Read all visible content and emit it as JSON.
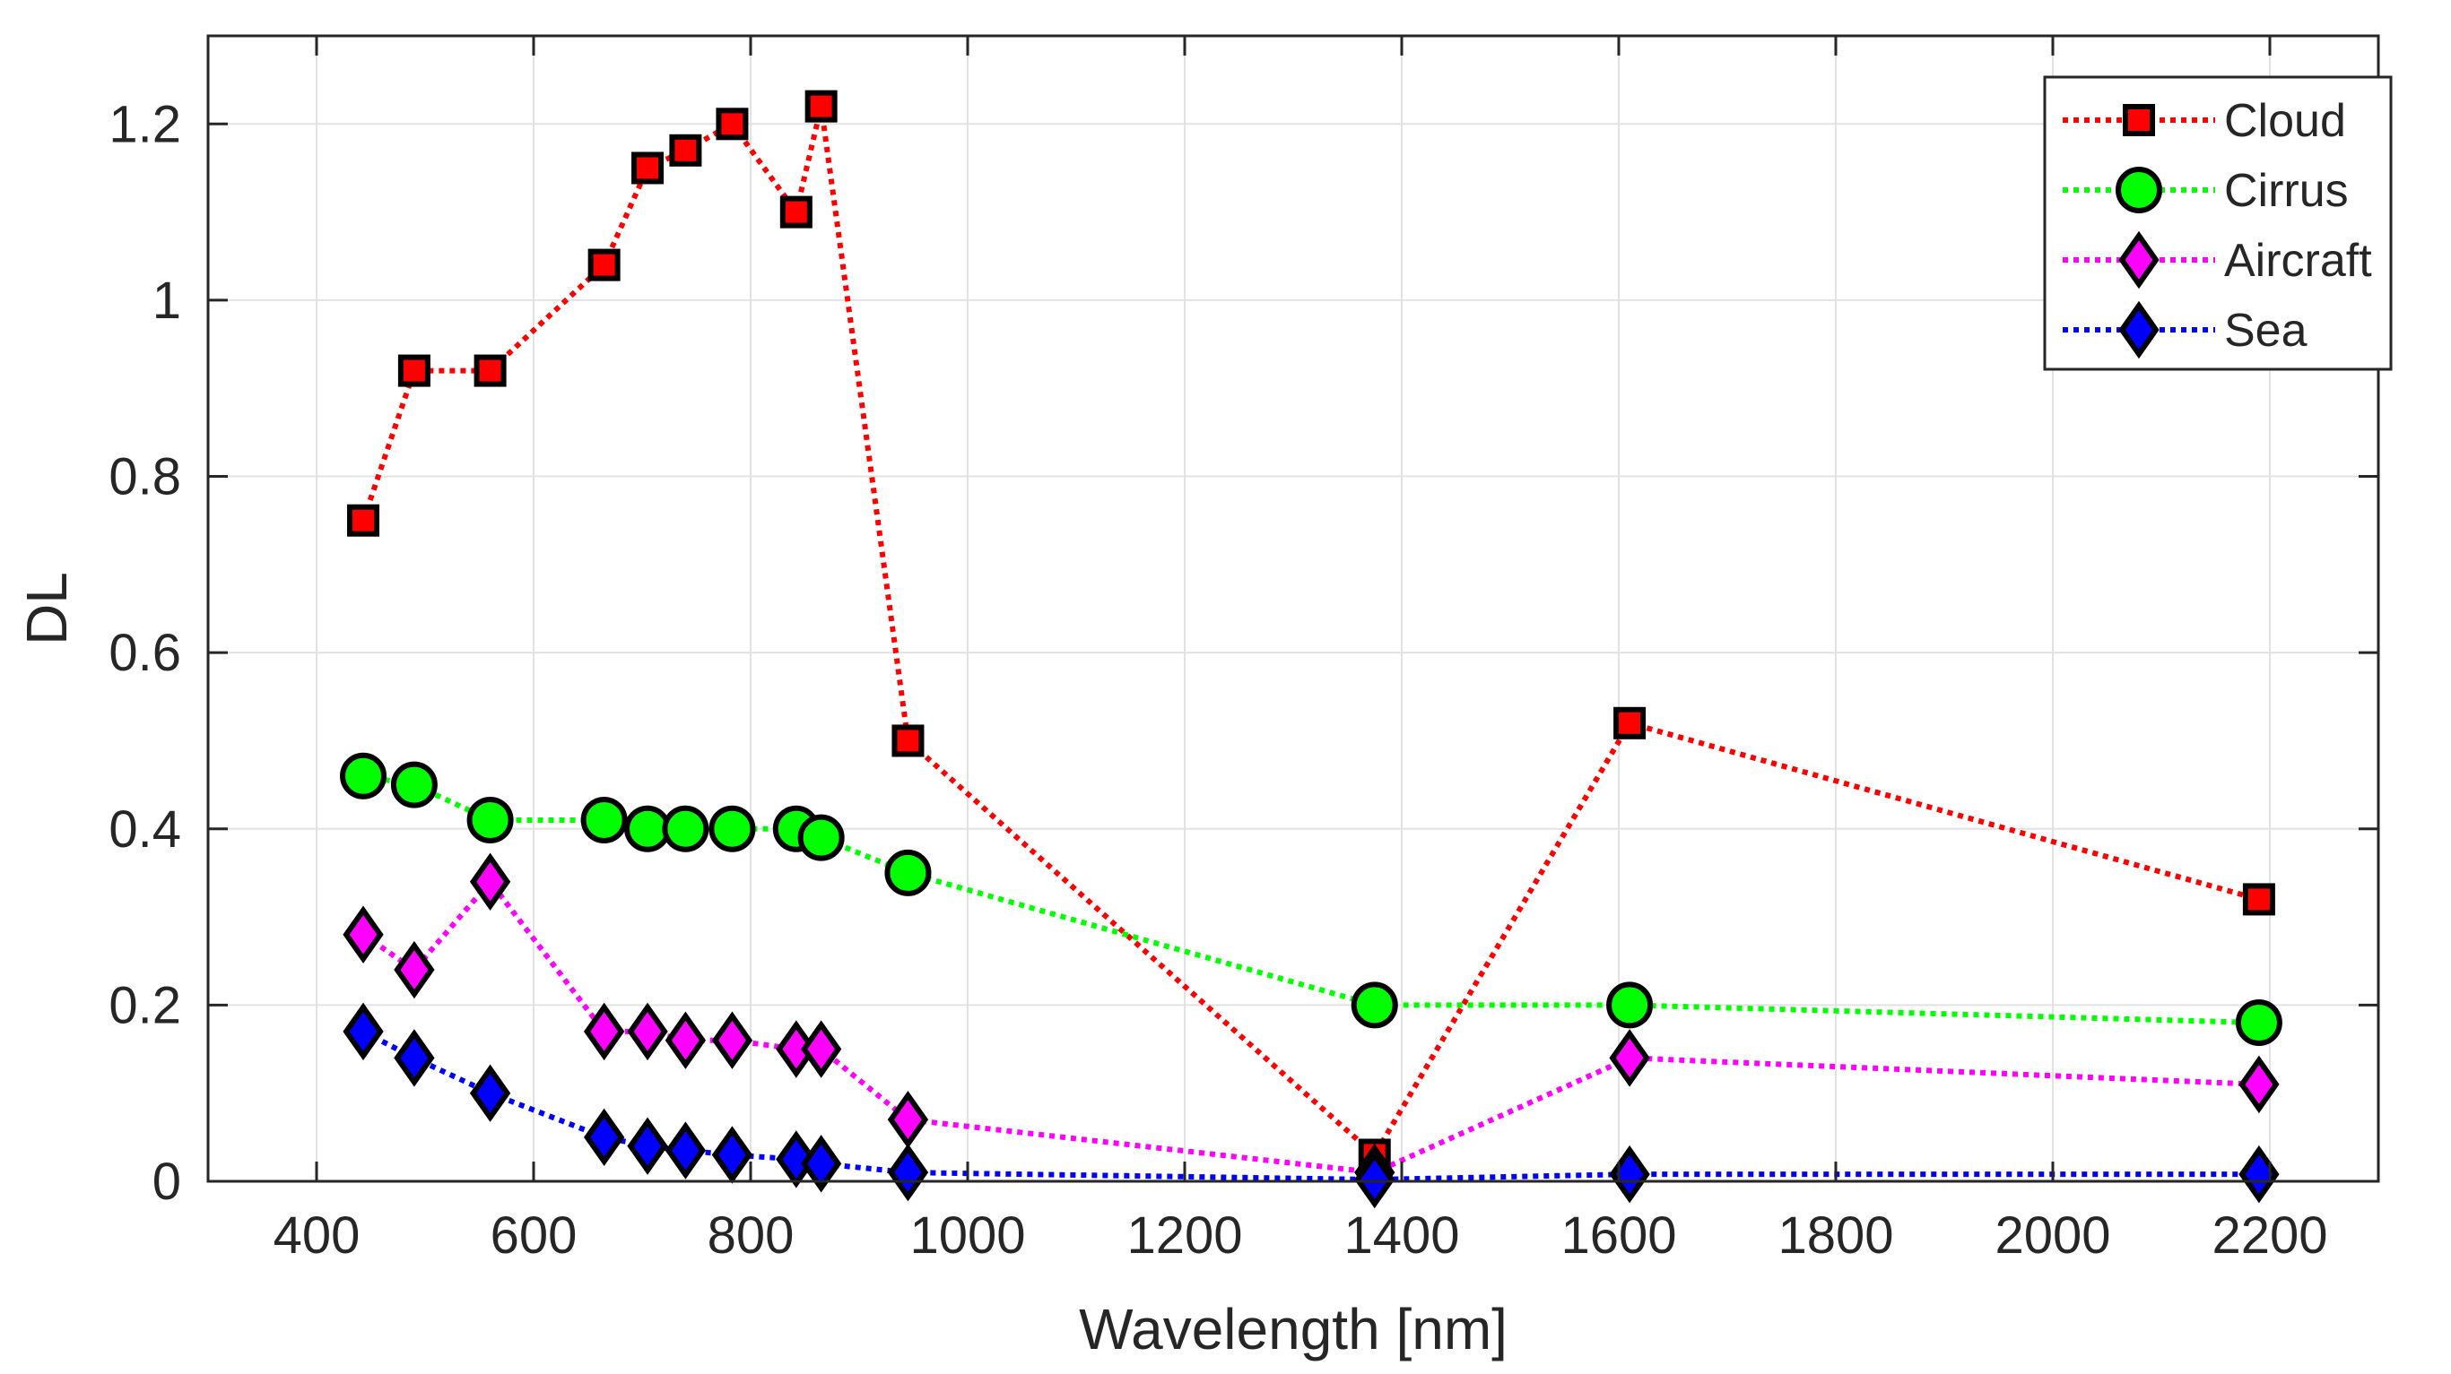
{
  "chart_data": {
    "type": "line",
    "title": "",
    "xlabel": "Wavelength [nm]",
    "ylabel": "DL",
    "xlim": [
      300,
      2300
    ],
    "ylim": [
      0,
      1.3
    ],
    "xticks": [
      400,
      600,
      800,
      1000,
      1200,
      1400,
      1600,
      1800,
      2000,
      2200
    ],
    "yticks": [
      0,
      0.2,
      0.4,
      0.6,
      0.8,
      1,
      1.2
    ],
    "xtick_labels": [
      "400",
      "600",
      "800",
      "1000",
      "1200",
      "1400",
      "1600",
      "1800",
      "2000",
      "2200"
    ],
    "ytick_labels": [
      "0",
      "0.2",
      "0.4",
      "0.6",
      "0.8",
      "1",
      "1.2"
    ],
    "grid": true,
    "legend_position": "top-right",
    "x": [
      443,
      490,
      560,
      665,
      705,
      740,
      783,
      842,
      865,
      945,
      1375,
      1610,
      2190
    ],
    "series": [
      {
        "name": "Cloud",
        "color": "#ff0000",
        "marker": "square",
        "values": [
          0.75,
          0.92,
          0.92,
          1.04,
          1.15,
          1.17,
          1.2,
          1.1,
          1.22,
          0.5,
          0.03,
          0.52,
          0.32
        ]
      },
      {
        "name": "Cirrus",
        "color": "#00ff00",
        "marker": "circle",
        "values": [
          0.46,
          0.45,
          0.41,
          0.41,
          0.4,
          0.4,
          0.4,
          0.4,
          0.39,
          0.35,
          0.2,
          0.2,
          0.18
        ]
      },
      {
        "name": "Aircraft",
        "color": "#ff00ff",
        "marker": "diamond",
        "values": [
          0.28,
          0.24,
          0.34,
          0.17,
          0.17,
          0.16,
          0.16,
          0.15,
          0.15,
          0.07,
          0.01,
          0.14,
          0.11
        ]
      },
      {
        "name": "Sea",
        "color": "#0000ff",
        "marker": "diamond",
        "values": [
          0.17,
          0.14,
          0.1,
          0.05,
          0.04,
          0.035,
          0.03,
          0.025,
          0.02,
          0.01,
          0.002,
          0.008,
          0.008
        ]
      }
    ]
  }
}
